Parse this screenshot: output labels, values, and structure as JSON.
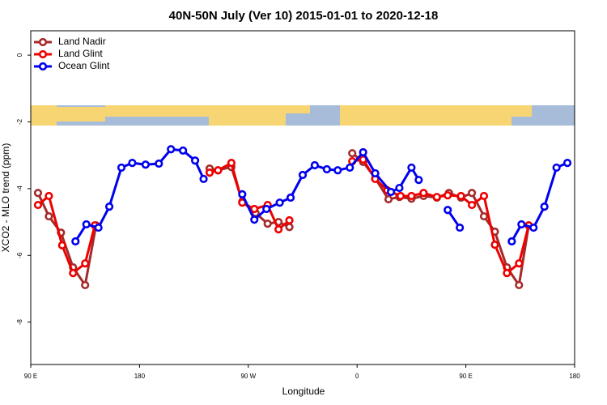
{
  "chart_data": {
    "type": "line",
    "title": "40N-50N July (Ver 10)   2015-01-01 to 2020-12-18",
    "x_label": "Longitude",
    "y_label": "XCO2 - MLO trend (ppm)",
    "xlim": [
      90,
      540
    ],
    "xticks": [
      {
        "value": 90,
        "label": "90 E"
      },
      180,
      {
        "value": 270,
        "label": "90 W"
      },
      {
        "value": 360,
        "label": "0"
      },
      {
        "value": 450,
        "label": "90 E"
      },
      {
        "value": 540,
        "label": "180"
      }
    ],
    "ylim": [
      -9.27,
      0.73
    ],
    "yticks": [
      0,
      -2,
      -4,
      -6,
      -8
    ],
    "legend": "topleft",
    "series": [
      {
        "name": "Land Nadir",
        "color": "#a52a2a",
        "x": [
          96,
          105,
          115,
          125,
          135,
          144,
          null,
          238,
          245,
          256,
          265,
          276,
          286,
          295,
          304,
          null,
          356,
          365,
          375,
          386,
          395,
          405,
          415,
          426,
          436,
          446,
          455,
          465,
          474,
          484,
          494,
          502
        ],
        "values": [
          -4.13,
          -4.83,
          -5.32,
          -6.36,
          -6.89,
          -5.1,
          null,
          -3.4,
          -3.45,
          -3.35,
          -4.39,
          -4.73,
          -5.05,
          -5.0,
          -5.15,
          null,
          -2.94,
          -3.2,
          -3.69,
          -4.32,
          -4.25,
          -4.3,
          -4.22,
          -4.27,
          -4.13,
          -4.27,
          -4.13,
          -4.83,
          -5.29,
          -6.36,
          -6.89,
          -5.1
        ]
      },
      {
        "name": "Land Glint",
        "color": "#ee0000",
        "x": [
          96,
          105,
          116,
          125,
          135,
          143,
          null,
          238,
          245,
          256,
          265,
          275,
          286,
          295,
          304,
          null,
          356,
          365,
          375,
          385,
          396,
          405,
          415,
          426,
          435,
          446,
          455,
          465,
          474,
          484,
          494,
          502
        ],
        "values": [
          -4.49,
          -4.22,
          -5.7,
          -6.53,
          -6.24,
          -5.1,
          null,
          -3.52,
          -3.45,
          -3.23,
          -4.42,
          -4.61,
          -4.49,
          -5.22,
          -4.95,
          null,
          -3.18,
          -3.13,
          -3.71,
          -4.05,
          -4.22,
          -4.22,
          -4.13,
          -4.25,
          -4.2,
          -4.22,
          -4.49,
          -4.22,
          -5.68,
          -6.53,
          -6.24,
          -5.1
        ]
      },
      {
        "name": "Ocean Glint",
        "color": "#0000ee",
        "x": [
          127,
          136,
          146,
          155,
          165,
          174,
          185,
          196,
          206,
          216,
          226,
          233,
          null,
          265,
          275,
          285,
          296,
          305,
          315,
          325,
          335,
          344,
          354,
          365,
          375,
          388,
          395,
          405,
          411,
          null,
          435,
          445,
          null,
          488,
          496,
          506,
          515,
          525,
          534
        ],
        "values": [
          -5.58,
          -5.07,
          -5.17,
          -4.54,
          -3.37,
          -3.23,
          -3.28,
          -3.25,
          -2.82,
          -2.86,
          -3.16,
          -3.71,
          null,
          -4.17,
          -4.93,
          -4.61,
          -4.42,
          -4.27,
          -3.59,
          -3.3,
          -3.42,
          -3.45,
          -3.37,
          -2.91,
          -3.54,
          -4.1,
          -3.98,
          -3.37,
          -3.74,
          null,
          -4.64,
          -5.17,
          null,
          -5.58,
          -5.07,
          -5.17,
          -4.54,
          -3.37,
          -3.23
        ]
      }
    ]
  }
}
